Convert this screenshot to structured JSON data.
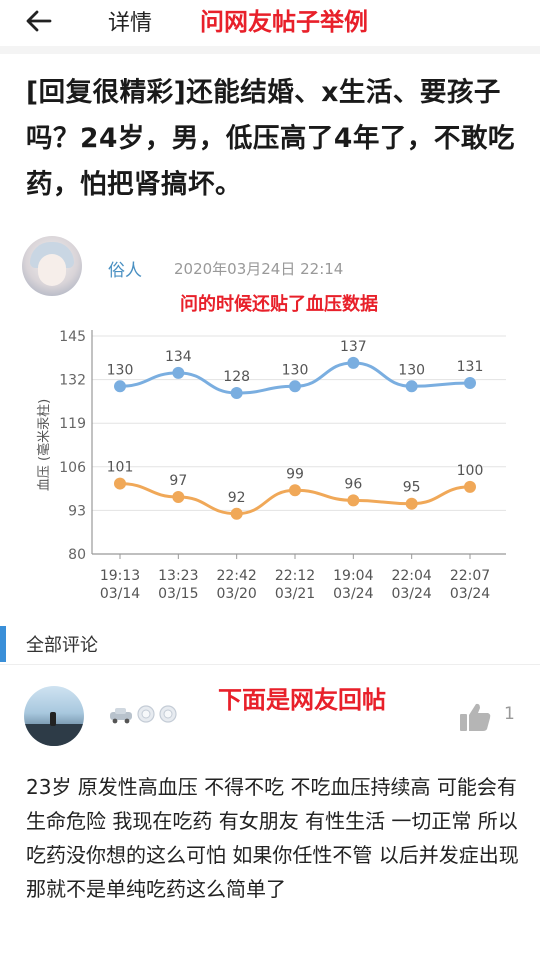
{
  "nav": {
    "title": "详情",
    "annotation": "问网友帖子举例"
  },
  "post": {
    "title": "[回复很精彩]还能结婚、x生活、要孩子吗？24岁，男，低压高了4年了，不敢吃药，怕把肾搞坏。",
    "author": "俗人",
    "time": "2020年03月24日 22:14",
    "annotation": "问的时候还贴了血压数据"
  },
  "chart_data": {
    "type": "line",
    "ylabel": "血压 (毫米汞柱)",
    "ylim": [
      80,
      145
    ],
    "yticks": [
      80,
      93,
      106,
      119,
      132,
      145
    ],
    "categories": [
      "19:13\n03/14",
      "13:23\n03/15",
      "22:42\n03/20",
      "22:12\n03/21",
      "19:04\n03/24",
      "22:04\n03/24",
      "22:07\n03/24"
    ],
    "series": [
      {
        "values": [
          130,
          134,
          128,
          130,
          137,
          130,
          131
        ],
        "color": "#7aaee0"
      },
      {
        "values": [
          101,
          97,
          92,
          99,
          96,
          95,
          100
        ],
        "color": "#f0a858"
      }
    ],
    "grid": true
  },
  "comments": {
    "header": "全部评论",
    "annotation": "下面是网友回帖",
    "items": [
      {
        "likes": "1",
        "text": "23岁 原发性高血压 不得不吃 不吃血压持续高 可能会有生命危险 我现在吃药 有女朋友 有性生活 一切正常 所以 吃药没你想的这么可怕 如果你任性不管 以后并发症出现 那就不是单纯吃药这么简单了"
      }
    ]
  },
  "icons": {
    "back": "arrow-left-icon",
    "like": "thumbs-up-icon",
    "badges": [
      "car-badge-icon",
      "medal-icon",
      "medal-icon"
    ]
  },
  "colors": {
    "annotation": "#e8202a",
    "accent": "#3a8fd8",
    "author": "#4a90c2"
  }
}
